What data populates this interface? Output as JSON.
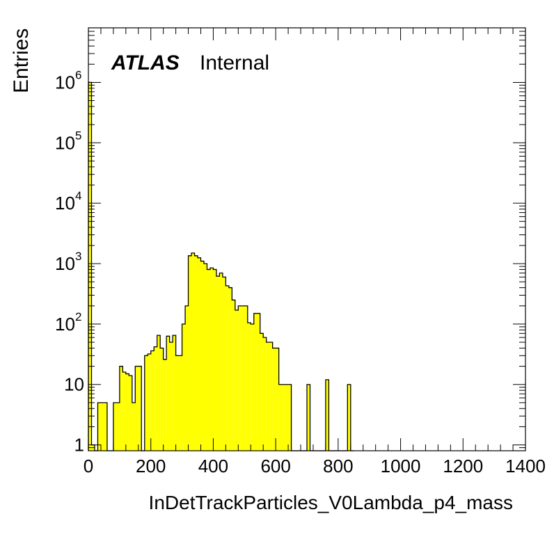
{
  "chart_data": {
    "type": "histogram",
    "xlabel": "InDetTrackParticles_V0Lambda_p4_mass",
    "ylabel": "Entries",
    "xlim": [
      0,
      1400
    ],
    "ylim": [
      0.8,
      8000000
    ],
    "y_scale": "log",
    "x_ticks": [
      "0",
      "200",
      "400",
      "600",
      "800",
      "1000",
      "1200",
      "1400"
    ],
    "y_ticks": [
      {
        "base": "1",
        "exp": ""
      },
      {
        "base": "10",
        "exp": ""
      },
      {
        "base": "10",
        "exp": "2"
      },
      {
        "base": "10",
        "exp": "3"
      },
      {
        "base": "10",
        "exp": "4"
      },
      {
        "base": "10",
        "exp": "5"
      },
      {
        "base": "10",
        "exp": "6"
      }
    ],
    "bin_width": 10,
    "bin_low_edges": [
      0,
      10,
      20,
      30,
      40,
      50,
      60,
      70,
      80,
      90,
      100,
      110,
      120,
      130,
      140,
      150,
      160,
      170,
      180,
      190,
      200,
      210,
      220,
      230,
      240,
      250,
      260,
      270,
      280,
      290,
      300,
      310,
      320,
      330,
      340,
      350,
      360,
      370,
      380,
      390,
      400,
      410,
      420,
      430,
      440,
      450,
      460,
      470,
      480,
      490,
      500,
      510,
      520,
      530,
      540,
      550,
      560,
      570,
      580,
      590,
      600,
      610,
      620,
      630,
      640,
      650,
      660,
      670,
      680,
      690,
      700,
      710,
      720,
      730,
      740,
      750,
      760,
      770,
      780,
      790,
      800,
      810,
      820,
      830,
      840
    ],
    "values": [
      1000000,
      1,
      0,
      5,
      5,
      5,
      0,
      0,
      5,
      5,
      20,
      16,
      15,
      14,
      5,
      20,
      20,
      0,
      30,
      32,
      36,
      42,
      65,
      40,
      26,
      63,
      50,
      65,
      30,
      30,
      100,
      200,
      1350,
      1500,
      1350,
      1250,
      1100,
      1000,
      800,
      850,
      800,
      620,
      700,
      600,
      430,
      400,
      250,
      170,
      200,
      200,
      200,
      105,
      100,
      150,
      150,
      70,
      60,
      50,
      50,
      40,
      40,
      10,
      10,
      10,
      10,
      0,
      0,
      0,
      0,
      0,
      10,
      0,
      0,
      0,
      0,
      0,
      12,
      0,
      0,
      0,
      0,
      0,
      0,
      10,
      0
    ],
    "fill_color": "#ffff00",
    "line_color": "#000000",
    "legend": "none",
    "grid": false
  },
  "labels": {
    "atlas": "ATLAS",
    "internal": "Internal"
  }
}
